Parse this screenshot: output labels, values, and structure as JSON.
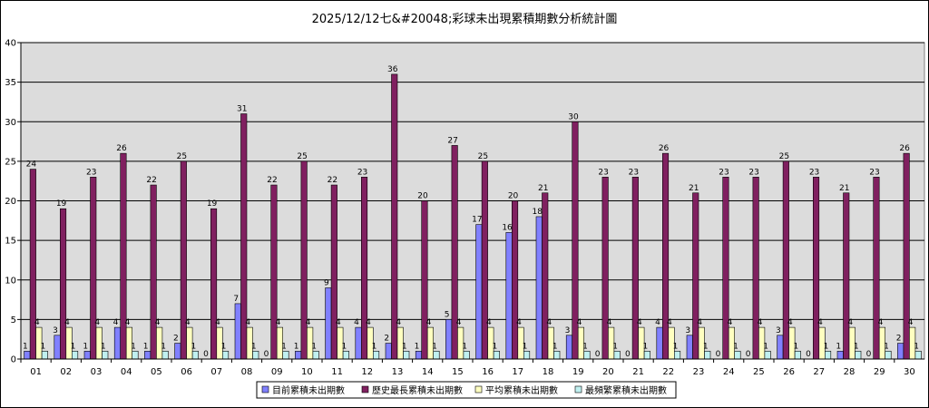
{
  "chart_data": {
    "type": "bar",
    "title": "2025/12/12七&#20048;彩球未出現累積期數分析統計圖",
    "categories": [
      "01",
      "02",
      "03",
      "04",
      "05",
      "06",
      "07",
      "08",
      "09",
      "10",
      "11",
      "12",
      "13",
      "14",
      "15",
      "16",
      "17",
      "18",
      "19",
      "20",
      "21",
      "22",
      "23",
      "24",
      "25",
      "26",
      "27",
      "28",
      "29",
      "30"
    ],
    "ylim": [
      0,
      40
    ],
    "yticks": [
      0,
      5,
      10,
      15,
      20,
      25,
      30,
      35,
      40
    ],
    "grid": true,
    "legend_position": "bottom",
    "series": [
      {
        "name": "目前累積未出期數",
        "color": "#8080ff",
        "values": [
          1,
          3,
          1,
          4,
          1,
          2,
          0,
          7,
          0,
          1,
          9,
          4,
          2,
          1,
          5,
          17,
          16,
          18,
          3,
          0,
          0,
          4,
          3,
          0,
          0,
          3,
          0,
          1,
          0,
          2
        ]
      },
      {
        "name": "歷史最長累積未出期數",
        "color": "#802060",
        "values": [
          24,
          19,
          23,
          26,
          22,
          25,
          19,
          31,
          22,
          25,
          22,
          23,
          36,
          20,
          27,
          25,
          20,
          21,
          30,
          23,
          23,
          26,
          21,
          23,
          23,
          25,
          23,
          21,
          23,
          26
        ]
      },
      {
        "name": "平均累積未出期數",
        "color": "#ffffc0",
        "values": [
          4,
          4,
          4,
          4,
          4,
          4,
          4,
          4,
          4,
          4,
          4,
          4,
          4,
          4,
          4,
          4,
          4,
          4,
          4,
          4,
          4,
          4,
          4,
          4,
          4,
          4,
          4,
          4,
          4,
          4
        ]
      },
      {
        "name": "最頻繁累積未出期數",
        "color": "#c0f0f0",
        "values": [
          1,
          1,
          1,
          1,
          1,
          1,
          1,
          1,
          1,
          1,
          1,
          1,
          1,
          1,
          1,
          1,
          1,
          1,
          1,
          1,
          1,
          1,
          1,
          1,
          1,
          1,
          1,
          1,
          1,
          1
        ]
      }
    ]
  }
}
